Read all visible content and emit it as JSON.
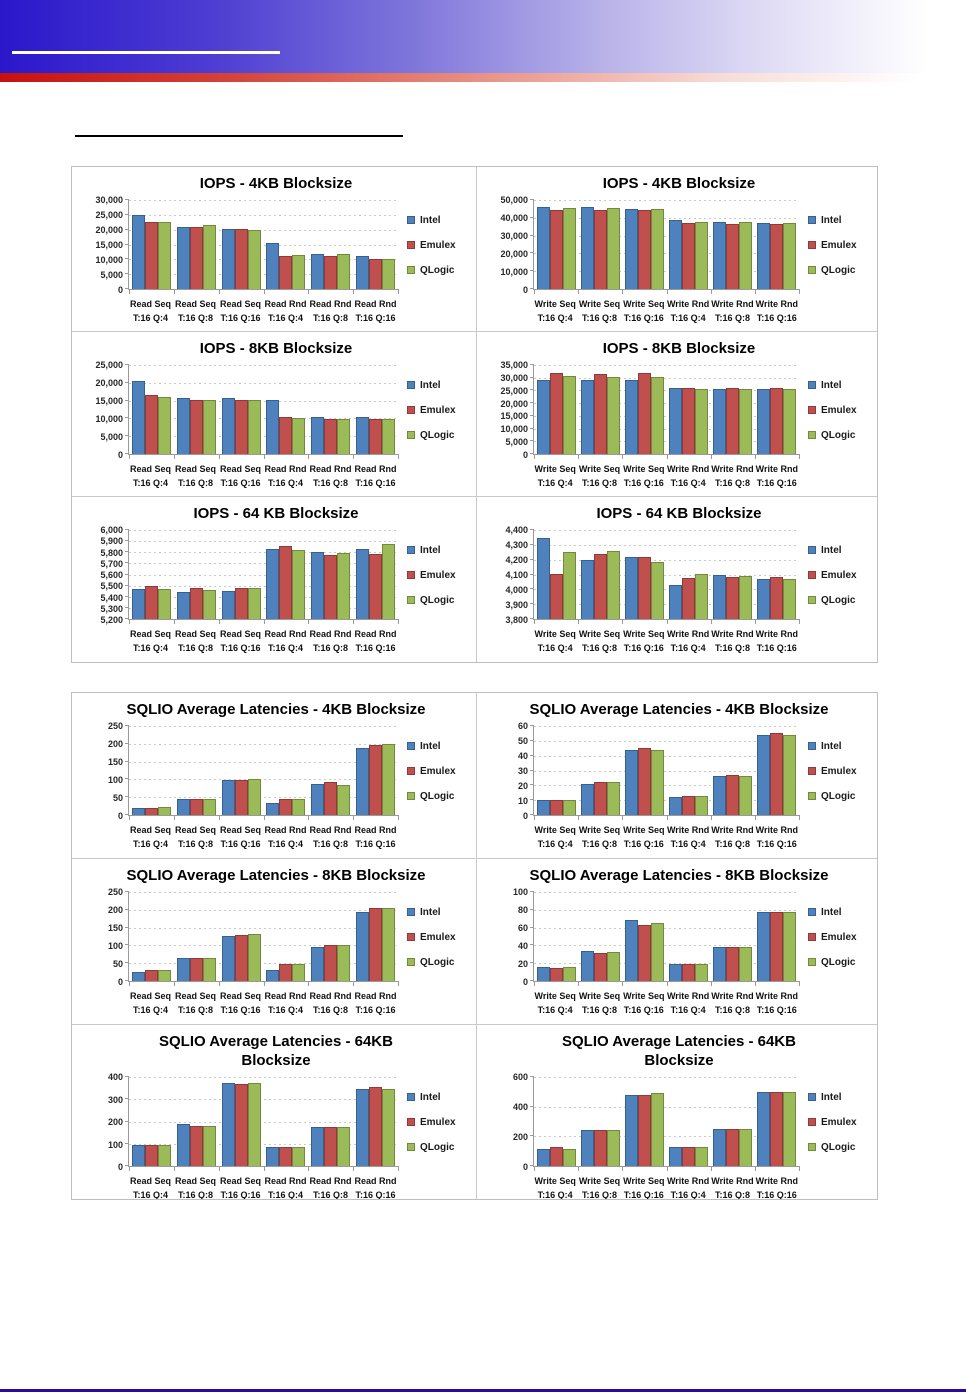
{
  "colors": {
    "banner_blue": "#2a17cb",
    "banner_red": "#c81010",
    "footer_line": "#2b0b9e",
    "panel_border": "#bfbfbf",
    "axis_line": "#9a9a9a",
    "gridline": "#c9c9c9"
  },
  "series_colors": {
    "Intel": {
      "fill": "#4f81bd",
      "border": "#36618f"
    },
    "Emulex": {
      "fill": "#c0504d",
      "border": "#8f3a38"
    },
    "QLogic": {
      "fill": "#9bbb59",
      "border": "#74893e"
    }
  },
  "legend": {
    "entries": [
      "Intel",
      "Emulex",
      "QLogic"
    ],
    "position": "right"
  },
  "read_categories": [
    [
      "Read Seq",
      "T:16 Q:4"
    ],
    [
      "Read Seq",
      "T:16 Q:8"
    ],
    [
      "Read Seq",
      "T:16 Q:16"
    ],
    [
      "Read Rnd",
      "T:16 Q:4"
    ],
    [
      "Read Rnd",
      "T:16 Q:8"
    ],
    [
      "Read Rnd",
      "T:16 Q:16"
    ]
  ],
  "write_categories": [
    [
      "Write Seq",
      "T:16 Q:4"
    ],
    [
      "Write Seq",
      "T:16 Q:8"
    ],
    [
      "Write Seq",
      "T:16 Q:16"
    ],
    [
      "Write Rnd",
      "T:16 Q:4"
    ],
    [
      "Write Rnd",
      "T:16 Q:8"
    ],
    [
      "Write Rnd",
      "T:16 Q:16"
    ]
  ],
  "chart_data": [
    {
      "type": "bar",
      "title": "IOPS - 4KB Blocksize",
      "category_set": "read",
      "ylim": [
        0,
        30000
      ],
      "ytick_step": 5000,
      "grid": true,
      "legend_position": "right",
      "series": [
        {
          "name": "Intel",
          "values": [
            24800,
            21000,
            20300,
            15600,
            11700,
            11100
          ]
        },
        {
          "name": "Emulex",
          "values": [
            22700,
            21000,
            20300,
            11100,
            11100,
            10200
          ]
        },
        {
          "name": "QLogic",
          "values": [
            22500,
            21600,
            19900,
            11300,
            11900,
            10200
          ]
        }
      ]
    },
    {
      "type": "bar",
      "title": "IOPS - 4KB Blocksize",
      "category_set": "write",
      "ylim": [
        0,
        50000
      ],
      "ytick_step": 10000,
      "grid": true,
      "legend_position": "right",
      "series": [
        {
          "name": "Intel",
          "values": [
            46000,
            46000,
            45200,
            38800,
            37500,
            37000
          ]
        },
        {
          "name": "Emulex",
          "values": [
            44600,
            44600,
            44200,
            37000,
            36400,
            36400
          ]
        },
        {
          "name": "QLogic",
          "values": [
            45600,
            45600,
            45100,
            37400,
            37400,
            36900
          ]
        }
      ]
    },
    {
      "type": "bar",
      "title": "IOPS - 8KB Blocksize",
      "category_set": "read",
      "ylim": [
        0,
        25000
      ],
      "ytick_step": 5000,
      "grid": true,
      "legend_position": "right",
      "series": [
        {
          "name": "Intel",
          "values": [
            20500,
            15600,
            15800,
            15100,
            10400,
            10400
          ]
        },
        {
          "name": "Emulex",
          "values": [
            16500,
            15300,
            15300,
            10400,
            9900,
            9900
          ]
        },
        {
          "name": "QLogic",
          "values": [
            16000,
            15300,
            15300,
            10100,
            9900,
            9900
          ]
        }
      ]
    },
    {
      "type": "bar",
      "title": "IOPS - 8KB Blocksize",
      "category_set": "write",
      "ylim": [
        0,
        35000
      ],
      "ytick_step": 5000,
      "grid": true,
      "legend_position": "right",
      "series": [
        {
          "name": "Intel",
          "values": [
            29300,
            29000,
            29000,
            25800,
            25400,
            25400
          ]
        },
        {
          "name": "Emulex",
          "values": [
            32000,
            31500,
            31800,
            25900,
            25900,
            25900
          ]
        },
        {
          "name": "QLogic",
          "values": [
            30700,
            30300,
            30300,
            25400,
            25400,
            25500
          ]
        }
      ]
    },
    {
      "type": "bar",
      "title": "IOPS - 64 KB Blocksize",
      "category_set": "read",
      "ylim": [
        5200,
        6000
      ],
      "ytick_step": 100,
      "grid": true,
      "legend_position": "right",
      "series": [
        {
          "name": "Intel",
          "values": [
            5470,
            5440,
            5450,
            5825,
            5800,
            5830
          ]
        },
        {
          "name": "Emulex",
          "values": [
            5495,
            5480,
            5480,
            5855,
            5775,
            5780
          ]
        },
        {
          "name": "QLogic",
          "values": [
            5470,
            5460,
            5480,
            5820,
            5790,
            5870
          ]
        }
      ]
    },
    {
      "type": "bar",
      "title": "IOPS - 64 KB Blocksize",
      "category_set": "write",
      "ylim": [
        3800,
        4400
      ],
      "ytick_step": 100,
      "grid": true,
      "legend_position": "right",
      "series": [
        {
          "name": "Intel",
          "values": [
            4345,
            4200,
            4220,
            4030,
            4095,
            4070
          ]
        },
        {
          "name": "Emulex",
          "values": [
            4105,
            4240,
            4220,
            4075,
            4085,
            4085
          ]
        },
        {
          "name": "QLogic",
          "values": [
            4250,
            4260,
            4185,
            4105,
            4090,
            4070
          ]
        }
      ]
    },
    {
      "type": "bar",
      "title": "SQLIO Average Latencies - 4KB Blocksize",
      "category_set": "read",
      "ylim": [
        0,
        250
      ],
      "ytick_step": 50,
      "grid": true,
      "legend_position": "right",
      "series": [
        {
          "name": "Intel",
          "values": [
            21,
            46,
            99,
            33,
            87,
            188
          ]
        },
        {
          "name": "Emulex",
          "values": [
            20,
            46,
            99,
            46,
            92,
            196
          ]
        },
        {
          "name": "QLogic",
          "values": [
            22,
            46,
            101,
            44,
            85,
            199
          ]
        }
      ]
    },
    {
      "type": "bar",
      "title": "SQLIO Average Latencies - 4KB Blocksize",
      "category_set": "write",
      "ylim": [
        0,
        60
      ],
      "ytick_step": 10,
      "grid": true,
      "legend_position": "right",
      "series": [
        {
          "name": "Intel",
          "values": [
            10,
            21,
            44,
            12,
            26,
            54
          ]
        },
        {
          "name": "Emulex",
          "values": [
            10,
            22,
            45,
            13,
            27,
            55
          ]
        },
        {
          "name": "QLogic",
          "values": [
            10,
            22,
            44,
            13,
            26,
            54
          ]
        }
      ]
    },
    {
      "type": "bar",
      "title": "SQLIO Average Latencies - 8KB Blocksize",
      "category_set": "read",
      "ylim": [
        0,
        250
      ],
      "ytick_step": 50,
      "grid": true,
      "legend_position": "right",
      "series": [
        {
          "name": "Intel",
          "values": [
            25,
            64,
            127,
            32,
            96,
            193
          ]
        },
        {
          "name": "Emulex",
          "values": [
            30,
            64,
            129,
            48,
            101,
            205
          ]
        },
        {
          "name": "QLogic",
          "values": [
            32,
            64,
            131,
            49,
            101,
            205
          ]
        }
      ]
    },
    {
      "type": "bar",
      "title": "SQLIO Average Latencies - 8KB Blocksize",
      "category_set": "write",
      "ylim": [
        0,
        100
      ],
      "ytick_step": 20,
      "grid": true,
      "legend_position": "right",
      "series": [
        {
          "name": "Intel",
          "values": [
            16,
            34,
            69,
            19,
            38,
            78
          ]
        },
        {
          "name": "Emulex",
          "values": [
            15,
            32,
            63,
            19,
            38,
            77
          ]
        },
        {
          "name": "QLogic",
          "values": [
            16,
            33,
            65,
            19,
            38,
            78
          ]
        }
      ]
    },
    {
      "type": "bar",
      "title": "SQLIO Average Latencies - 64KB\nBlocksize",
      "category_set": "read",
      "ylim": [
        0,
        400
      ],
      "ytick_step": 100,
      "grid": true,
      "legend_position": "right",
      "series": [
        {
          "name": "Intel",
          "values": [
            93,
            187,
            375,
            87,
            176,
            348
          ]
        },
        {
          "name": "Emulex",
          "values": [
            93,
            182,
            370,
            87,
            175,
            355
          ]
        },
        {
          "name": "QLogic",
          "values": [
            93,
            182,
            373,
            87,
            176,
            348
          ]
        }
      ]
    },
    {
      "type": "bar",
      "title": "SQLIO Average Latencies - 64KB\nBlocksize",
      "category_set": "write",
      "ylim": [
        0,
        600
      ],
      "ytick_step": 200,
      "grid": true,
      "legend_position": "right",
      "series": [
        {
          "name": "Intel",
          "values": [
            115,
            240,
            480,
            125,
            248,
            500
          ]
        },
        {
          "name": "Emulex",
          "values": [
            125,
            240,
            480,
            125,
            248,
            500
          ]
        },
        {
          "name": "QLogic",
          "values": [
            115,
            240,
            490,
            125,
            248,
            497
          ]
        }
      ]
    }
  ]
}
